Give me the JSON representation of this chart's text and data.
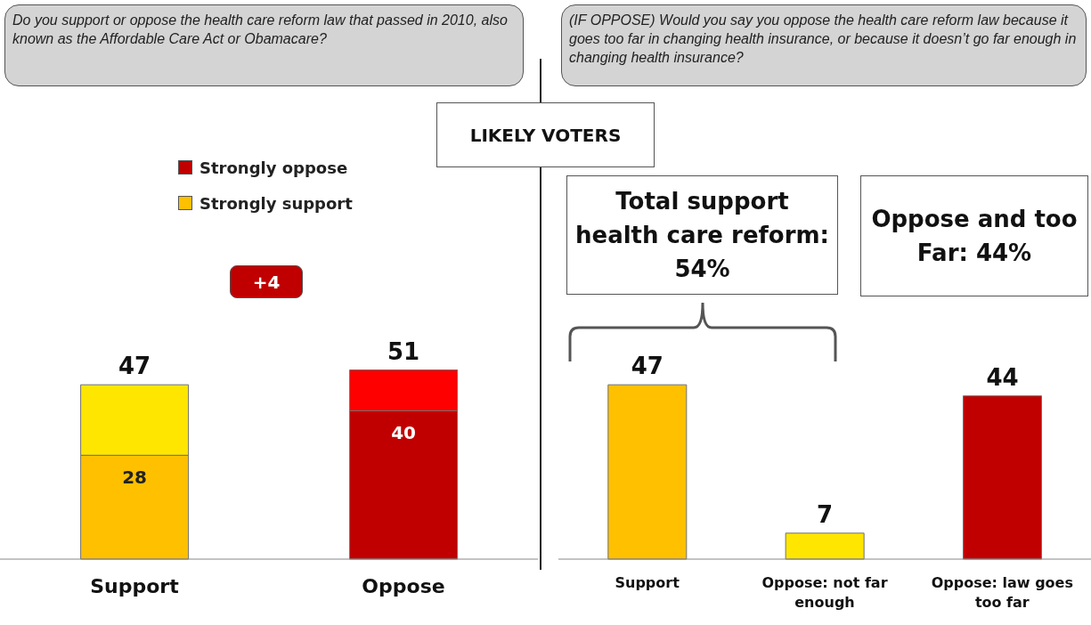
{
  "chart_data": [
    {
      "type": "bar",
      "title": "Do you support or oppose the health care reform law that passed in 2010, also known as the Affordable Care Act or Obamacare?",
      "subtitle": "LIKELY VOTERS",
      "categories": [
        "Support",
        "Oppose"
      ],
      "stacked": true,
      "legend": "top",
      "series": [
        {
          "name": "Strongly support",
          "color": "#ffc000",
          "values": [
            28,
            null
          ],
          "value_labels": [
            "28",
            null
          ]
        },
        {
          "name": "Strongly oppose",
          "color": "#c00000",
          "values": [
            null,
            40
          ],
          "value_labels": [
            null,
            "40"
          ]
        },
        {
          "color": "#ffe600",
          "values": [
            19,
            null
          ]
        },
        {
          "color": "#ff0000",
          "values": [
            null,
            11
          ]
        }
      ],
      "totals": [
        "47",
        "51"
      ],
      "annotations": [
        "+4"
      ]
    },
    {
      "type": "bar",
      "title": "(IF OPPOSE) Would you say you oppose the health care reform law because it goes too far in changing health insurance, or because it doesn’t go far enough in changing health insurance?",
      "categories": [
        "Support",
        "Oppose: not far enough",
        "Oppose: law goes too far"
      ],
      "values": [
        47,
        7,
        44
      ],
      "colors": [
        "#ffc000",
        "#ffe600",
        "#c00000"
      ],
      "data_labels": true,
      "annotations": [
        "Total support health care reform: 54%",
        "Oppose and too Far: 44%"
      ]
    }
  ]
}
